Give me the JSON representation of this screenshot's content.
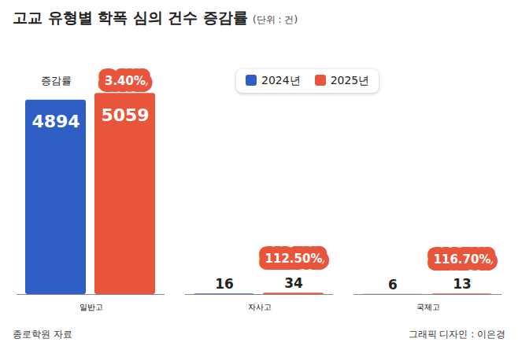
{
  "chart_data": {
    "type": "bar",
    "title": "고교 유형별 학폭 심의 건수 증감률",
    "subtitle": "(단위 : 건)",
    "categories": [
      "일반고",
      "자사고",
      "국제고"
    ],
    "series": [
      {
        "name": "2024년",
        "color": "#2f5fc4",
        "values": [
          4894,
          16,
          6
        ]
      },
      {
        "name": "2025년",
        "color": "#e8553a",
        "values": [
          5059,
          34,
          13
        ]
      }
    ],
    "change_rates": {
      "label": "증감률",
      "values": [
        3.4,
        112.5,
        116.7
      ],
      "value_labels": [
        "3.40%",
        "112.50%",
        "116.70%"
      ]
    },
    "ylim": [
      0,
      5500
    ],
    "data_labels": true,
    "tick_labels": "x",
    "grid": false,
    "legend": "top",
    "source": "종로학원 자료",
    "credit": "그래픽 디자인 : 이은경"
  }
}
